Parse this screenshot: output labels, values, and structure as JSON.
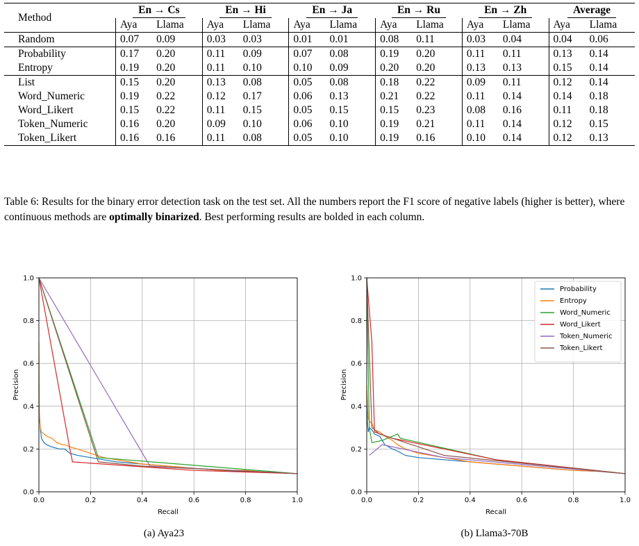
{
  "table": {
    "method_header": "Method",
    "groups": [
      "En → Cs",
      "En → Hi",
      "En → Ja",
      "En → Ru",
      "En → Zh",
      "Average"
    ],
    "subheaders": [
      "Aya",
      "Llama"
    ],
    "sections": [
      [
        {
          "method": "Random",
          "values": [
            "0.07",
            "0.09",
            "0.03",
            "0.03",
            "0.01",
            "0.01",
            "0.08",
            "0.11",
            "0.03",
            "0.04",
            "0.04",
            "0.06"
          ],
          "bold": []
        }
      ],
      [
        {
          "method": "Probability",
          "values": [
            "0.17",
            "0.20",
            "0.11",
            "0.09",
            "0.07",
            "0.08",
            "0.19",
            "0.20",
            "0.11",
            "0.11",
            "0.13",
            "0.14"
          ],
          "bold": []
        },
        {
          "method": "Entropy",
          "values": [
            "0.19",
            "0.20",
            "0.11",
            "0.10",
            "0.10",
            "0.09",
            "0.20",
            "0.20",
            "0.13",
            "0.13",
            "0.15",
            "0.14"
          ],
          "bold": [
            0,
            4,
            8
          ]
        }
      ],
      [
        {
          "method": "List",
          "values": [
            "0.15",
            "0.20",
            "0.13",
            "0.08",
            "0.05",
            "0.08",
            "0.18",
            "0.22",
            "0.09",
            "0.11",
            "0.12",
            "0.14"
          ],
          "bold": [
            2
          ]
        },
        {
          "method": "Word_Numeric",
          "values": [
            "0.19",
            "0.22",
            "0.12",
            "0.17",
            "0.06",
            "0.13",
            "0.21",
            "0.22",
            "0.11",
            "0.14",
            "0.14",
            "0.18"
          ],
          "bold": [
            0,
            1,
            3,
            6
          ]
        },
        {
          "method": "Word_Likert",
          "values": [
            "0.15",
            "0.22",
            "0.11",
            "0.15",
            "0.05",
            "0.15",
            "0.15",
            "0.23",
            "0.08",
            "0.16",
            "0.11",
            "0.18"
          ],
          "bold": [
            1,
            5,
            7,
            9
          ]
        },
        {
          "method": "Token_Numeric",
          "values": [
            "0.16",
            "0.20",
            "0.09",
            "0.10",
            "0.06",
            "0.10",
            "0.19",
            "0.21",
            "0.11",
            "0.14",
            "0.12",
            "0.15"
          ],
          "bold": []
        },
        {
          "method": "Token_Likert",
          "values": [
            "0.16",
            "0.16",
            "0.11",
            "0.08",
            "0.05",
            "0.10",
            "0.19",
            "0.16",
            "0.10",
            "0.14",
            "0.12",
            "0.13"
          ],
          "bold": []
        }
      ]
    ]
  },
  "caption": {
    "part1": "Table 6: Results for the binary error detection task on the test set. All the numbers report the F1 score of negative labels (higher is better), where continuous methods are ",
    "bold": "optimally binarized",
    "part2": ". Best performing results are bolded in each column."
  },
  "chart_data": [
    {
      "type": "line",
      "caption": "(a) Aya23",
      "xlabel": "Recall",
      "ylabel": "Precision",
      "xlim": [
        0,
        1
      ],
      "ylim": [
        0,
        1
      ],
      "xticks": [
        "0.0",
        "0.2",
        "0.4",
        "0.6",
        "0.8",
        "1.0"
      ],
      "yticks": [
        "0.0",
        "0.2",
        "0.4",
        "0.6",
        "0.8",
        "1.0"
      ],
      "grid": true,
      "legend": "none",
      "series": [
        {
          "name": "Probability",
          "color": "#1f77b4",
          "x": [
            0,
            0.002,
            0.005,
            0.01,
            0.02,
            0.03,
            0.05,
            0.08,
            0.1,
            0.12,
            0.15,
            0.2,
            0.25,
            0.3,
            0.4,
            0.5,
            0.6,
            0.7,
            0.8,
            0.9,
            1.0
          ],
          "y": [
            0.5,
            0.35,
            0.3,
            0.25,
            0.23,
            0.22,
            0.21,
            0.2,
            0.2,
            0.18,
            0.17,
            0.16,
            0.15,
            0.14,
            0.13,
            0.12,
            0.11,
            0.1,
            0.095,
            0.09,
            0.085
          ]
        },
        {
          "name": "Entropy",
          "color": "#ff7f0e",
          "x": [
            0,
            0.002,
            0.005,
            0.01,
            0.02,
            0.03,
            0.05,
            0.07,
            0.09,
            0.1,
            0.12,
            0.15,
            0.2,
            0.25,
            0.3,
            0.4,
            0.5,
            0.6,
            0.7,
            0.8,
            0.9,
            1.0
          ],
          "y": [
            0.7,
            0.37,
            0.3,
            0.28,
            0.27,
            0.26,
            0.25,
            0.23,
            0.22,
            0.22,
            0.21,
            0.2,
            0.18,
            0.16,
            0.15,
            0.13,
            0.12,
            0.11,
            0.1,
            0.1,
            0.09,
            0.085
          ]
        },
        {
          "name": "Word_Numeric",
          "color": "#2ca02c",
          "x": [
            0,
            0.23,
            1.0
          ],
          "y": [
            1.0,
            0.16,
            0.085
          ]
        },
        {
          "name": "Word_Likert",
          "color": "#d62728",
          "x": [
            0,
            0.12,
            0.13,
            0.6,
            1.0
          ],
          "y": [
            1.0,
            0.2,
            0.14,
            0.1,
            0.085
          ]
        },
        {
          "name": "Token_Numeric",
          "color": "#9467bd",
          "x": [
            0,
            0.43,
            1.0
          ],
          "y": [
            1.0,
            0.12,
            0.085
          ]
        },
        {
          "name": "Token_Likert",
          "color": "#8c564b",
          "x": [
            0,
            0.23,
            0.4,
            1.0
          ],
          "y": [
            1.0,
            0.14,
            0.12,
            0.085
          ]
        }
      ]
    },
    {
      "type": "line",
      "caption": "(b) Llama3-70B",
      "xlabel": "Recall",
      "ylabel": "Precision",
      "xlim": [
        0,
        1
      ],
      "ylim": [
        0,
        1
      ],
      "xticks": [
        "0.0",
        "0.2",
        "0.4",
        "0.6",
        "0.8",
        "1.0"
      ],
      "yticks": [
        "0.0",
        "0.2",
        "0.4",
        "0.6",
        "0.8",
        "1.0"
      ],
      "grid": true,
      "legend": "top-right",
      "series": [
        {
          "name": "Probability",
          "color": "#1f77b4",
          "x": [
            0,
            0.003,
            0.006,
            0.01,
            0.02,
            0.03,
            0.05,
            0.07,
            0.1,
            0.12,
            0.15,
            0.2,
            0.3,
            0.4,
            0.5,
            0.6,
            0.7,
            0.8,
            0.9,
            1.0
          ],
          "y": [
            0.4,
            0.32,
            0.28,
            0.3,
            0.29,
            0.27,
            0.26,
            0.22,
            0.2,
            0.19,
            0.17,
            0.16,
            0.15,
            0.14,
            0.13,
            0.12,
            0.11,
            0.1,
            0.095,
            0.085
          ]
        },
        {
          "name": "Entropy",
          "color": "#ff7f0e",
          "x": [
            0,
            0.005,
            0.01,
            0.02,
            0.03,
            0.05,
            0.07,
            0.1,
            0.12,
            0.15,
            0.2,
            0.3,
            0.4,
            0.5,
            0.6,
            0.7,
            0.8,
            0.9,
            1.0
          ],
          "y": [
            0.5,
            0.35,
            0.33,
            0.32,
            0.29,
            0.28,
            0.26,
            0.24,
            0.22,
            0.2,
            0.18,
            0.16,
            0.14,
            0.13,
            0.12,
            0.11,
            0.1,
            0.095,
            0.085
          ]
        },
        {
          "name": "Word_Numeric",
          "color": "#2ca02c",
          "x": [
            0,
            0.01,
            0.02,
            0.06,
            0.12,
            0.13,
            0.5,
            1.0
          ],
          "y": [
            1.0,
            0.3,
            0.23,
            0.24,
            0.27,
            0.25,
            0.15,
            0.085
          ]
        },
        {
          "name": "Word_Likert",
          "color": "#d62728",
          "x": [
            0,
            0.02,
            0.03,
            0.1,
            0.5,
            1.0
          ],
          "y": [
            1.0,
            0.7,
            0.28,
            0.25,
            0.15,
            0.085
          ]
        },
        {
          "name": "Token_Numeric",
          "color": "#9467bd",
          "x": [
            0.01,
            0.06,
            0.3,
            1.0
          ],
          "y": [
            0.17,
            0.22,
            0.16,
            0.085
          ]
        },
        {
          "name": "Token_Likert",
          "color": "#8c564b",
          "x": [
            0,
            0.02,
            0.05,
            0.3,
            1.0
          ],
          "y": [
            1.0,
            0.3,
            0.27,
            0.17,
            0.085
          ]
        }
      ]
    }
  ]
}
